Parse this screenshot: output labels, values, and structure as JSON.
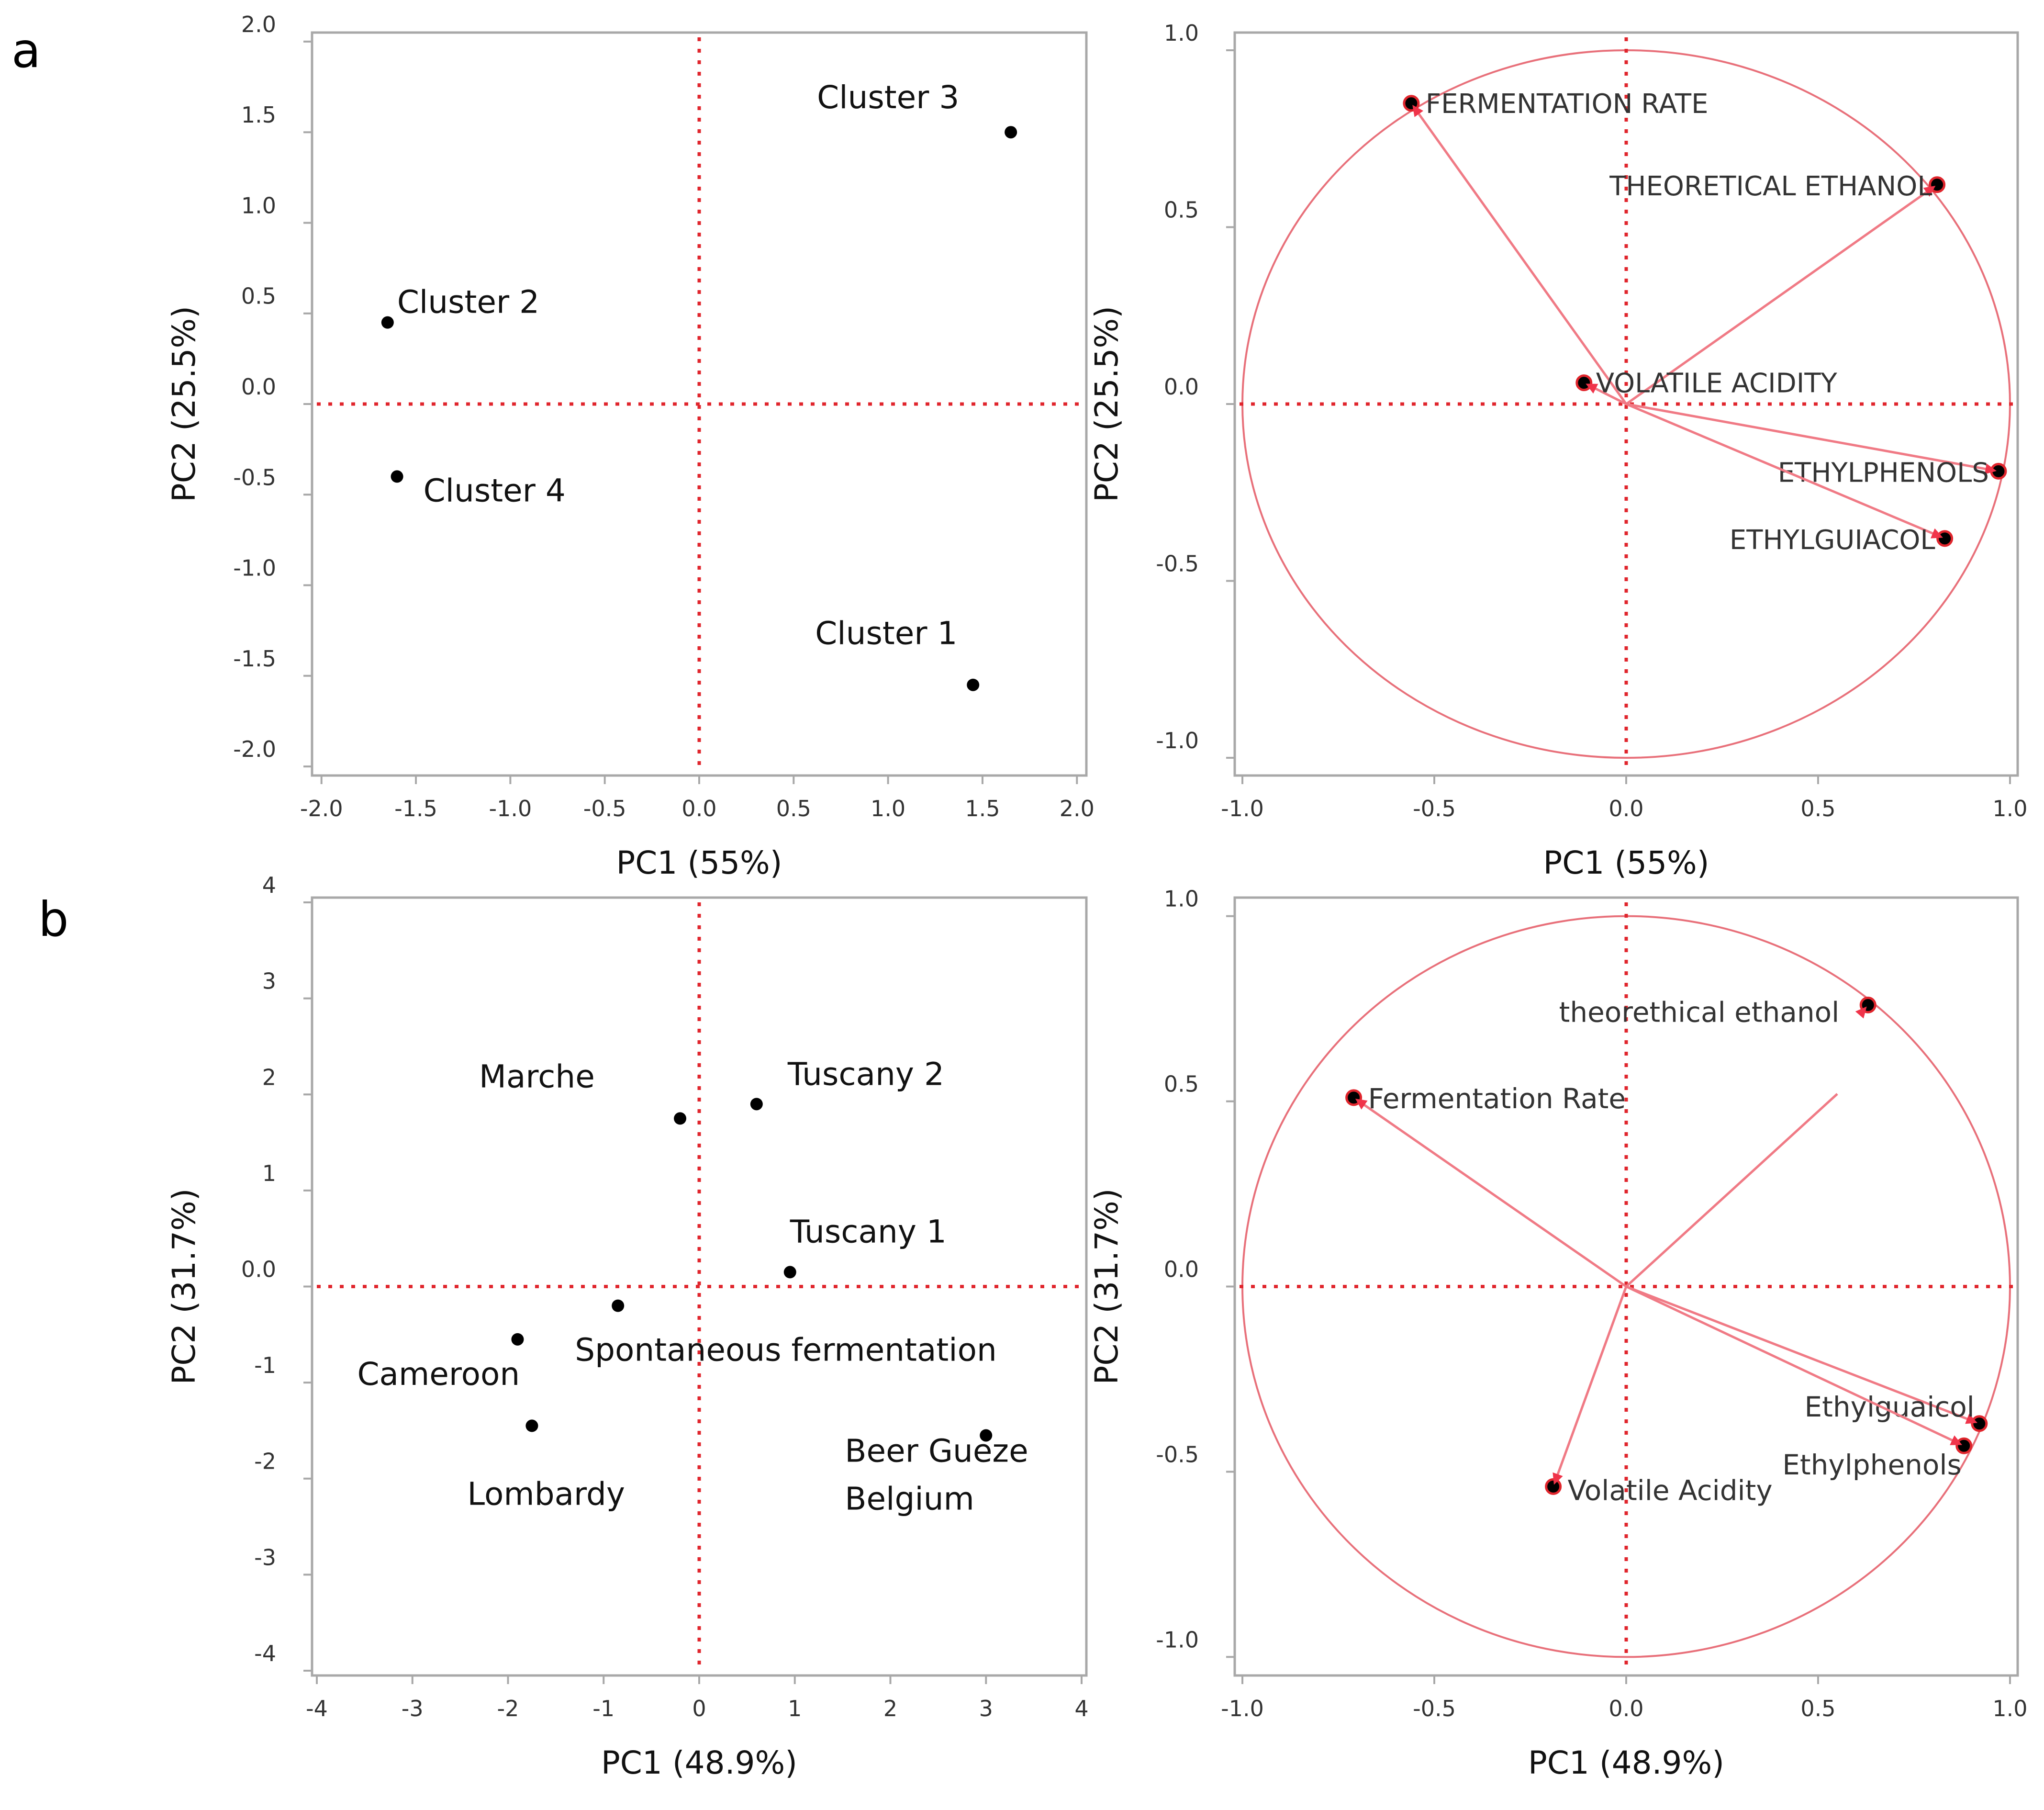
{
  "panel_labels": [
    "a",
    "b"
  ],
  "colors": {
    "zero_line": "#e0262d",
    "circle": "#e8707a",
    "vector": "#f07a85",
    "point": "#000000"
  },
  "chart_data": [
    {
      "id": "a-scores",
      "type": "scatter",
      "panel": "a",
      "xlabel": "PC1 (55%)",
      "ylabel": "PC2 (25.5%)",
      "xlim": [
        -2.05,
        2.05
      ],
      "ylim": [
        -2.05,
        2.05
      ],
      "xticks": [
        -2.0,
        -1.5,
        -1.0,
        -0.5,
        0.0,
        0.5,
        1.0,
        1.5,
        2.0
      ],
      "xtick_labels": [
        "-2.0",
        "-1.5",
        "-1.0",
        "-0.5",
        "0.0",
        "0.5",
        "1.0",
        "1.5",
        "2.0"
      ],
      "yticks": [
        2.0,
        1.5,
        1.0,
        0.5,
        0.0,
        -0.5,
        -1.0,
        -1.5,
        -2.0
      ],
      "ytick_labels": [
        "2.0",
        "1.5",
        "1.0",
        "0.5",
        "0.0",
        "-0.5",
        "-1.0",
        "-1.5",
        "-2.0"
      ],
      "points": [
        {
          "label": "Cluster 3",
          "x": 1.65,
          "y": 1.5
        },
        {
          "label": "Cluster 2",
          "x": -1.65,
          "y": 0.45
        },
        {
          "label": "Cluster 4",
          "x": -1.6,
          "y": -0.4
        },
        {
          "label": "Cluster 1",
          "x": 1.45,
          "y": -1.55
        }
      ]
    },
    {
      "id": "a-loadings",
      "type": "scatter",
      "panel": "a",
      "xlabel": "PC1 (55%)",
      "ylabel": "PC2 (25.5%)",
      "xlim": [
        -1.02,
        1.02
      ],
      "ylim": [
        -1.05,
        1.05
      ],
      "xticks": [
        -1.0,
        -0.5,
        0.0,
        0.5,
        1.0
      ],
      "xtick_labels": [
        "-1.0",
        "-0.5",
        "0.0",
        "0.5",
        "1.0"
      ],
      "yticks": [
        1.0,
        0.5,
        0.0,
        -0.5,
        -1.0
      ],
      "ytick_labels": [
        "1.0",
        "0.5",
        "0.0",
        "-0.5",
        "-1.0"
      ],
      "unit_circle": true,
      "vectors": [
        {
          "label": "FERMENTATION RATE",
          "x": -0.56,
          "y": 0.85
        },
        {
          "label": "THEORETICAL ETHANOL",
          "x": 0.81,
          "y": 0.62
        },
        {
          "label": "VOLATILE ACIDITY",
          "x": -0.11,
          "y": 0.06
        },
        {
          "label": "ETHYLPHENOLS",
          "x": 0.97,
          "y": -0.19
        },
        {
          "label": "ETHYLGUIACOL",
          "x": 0.83,
          "y": -0.38
        }
      ]
    },
    {
      "id": "b-scores",
      "type": "scatter",
      "panel": "b",
      "xlabel": "PC1 (48.9%)",
      "ylabel": "PC2 (31.7%)",
      "xlim": [
        -4.05,
        4.05
      ],
      "ylim": [
        -4.05,
        4.05
      ],
      "xticks": [
        -4,
        -3,
        -2,
        -1,
        0,
        1,
        2,
        3,
        4
      ],
      "xtick_labels": [
        "-4",
        "-3",
        "-2",
        "-1",
        "0",
        "1",
        "2",
        "3",
        "4"
      ],
      "yticks": [
        4,
        3,
        2,
        1,
        0,
        -1,
        -2,
        -3,
        -4
      ],
      "ytick_labels": [
        "4",
        "3",
        "2",
        "1",
        "0.0",
        "-1",
        "-2",
        "-3",
        "-4"
      ],
      "points": [
        {
          "label": "Marche",
          "x": -0.2,
          "y": 1.75
        },
        {
          "label": "Tuscany 2",
          "x": 0.6,
          "y": 1.9
        },
        {
          "label": "Tuscany 1",
          "x": 0.95,
          "y": 0.15
        },
        {
          "label": "Spontaneous fermentation",
          "x": -0.85,
          "y": -0.2
        },
        {
          "label": "Cameroon",
          "x": -1.9,
          "y": -0.55
        },
        {
          "label": "Lombardy",
          "x": -1.75,
          "y": -1.45
        },
        {
          "label": "Beer Gueze",
          "label_line2": "Belgium",
          "x": 3.0,
          "y": -1.55
        }
      ]
    },
    {
      "id": "b-loadings",
      "type": "scatter",
      "panel": "b",
      "xlabel": "PC1 (48.9%)",
      "ylabel": "PC2 (31.7%)",
      "xlim": [
        -1.02,
        1.02
      ],
      "ylim": [
        -1.05,
        1.05
      ],
      "xticks": [
        -1.0,
        -0.5,
        0.0,
        0.5,
        1.0
      ],
      "xtick_labels": [
        "-1.0",
        "-0.5",
        "0.0",
        "0.5",
        "1.0"
      ],
      "yticks": [
        1.0,
        0.5,
        0.0,
        -0.5,
        -1.0
      ],
      "ytick_labels": [
        "1.0",
        "0.5",
        "0.0",
        "-0.5",
        "-1.0"
      ],
      "unit_circle": true,
      "vectors": [
        {
          "label": "theorethical ethanol",
          "x": 0.63,
          "y": 0.76
        },
        {
          "label": "Fermentation Rate",
          "x": -0.71,
          "y": 0.51
        },
        {
          "label": "Volatile Acidity",
          "x": -0.19,
          "y": -0.54
        },
        {
          "label": "Ethylguaicol",
          "x": 0.92,
          "y": -0.37
        },
        {
          "label": "Ethylphenols",
          "x": 0.88,
          "y": -0.43
        }
      ]
    }
  ]
}
